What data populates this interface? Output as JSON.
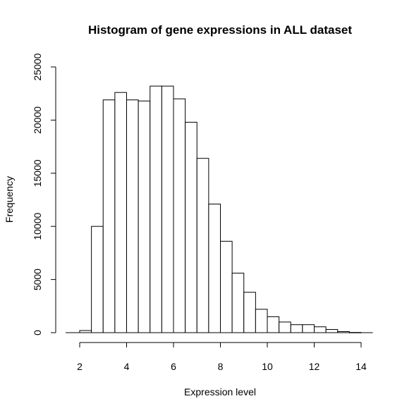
{
  "chart_data": {
    "type": "bar",
    "title": "Histogram of gene expressions in ALL dataset",
    "xlabel": "Expression level",
    "ylabel": "Frequency",
    "bin_width": 0.5,
    "bins": [
      {
        "start": 2.0,
        "end": 2.5,
        "count": 200
      },
      {
        "start": 2.5,
        "end": 3.0,
        "count": 10000
      },
      {
        "start": 3.0,
        "end": 3.5,
        "count": 21900
      },
      {
        "start": 3.5,
        "end": 4.0,
        "count": 22600
      },
      {
        "start": 4.0,
        "end": 4.5,
        "count": 21900
      },
      {
        "start": 4.5,
        "end": 5.0,
        "count": 21800
      },
      {
        "start": 5.0,
        "end": 5.5,
        "count": 23200
      },
      {
        "start": 5.5,
        "end": 6.0,
        "count": 23200
      },
      {
        "start": 6.0,
        "end": 6.5,
        "count": 22000
      },
      {
        "start": 6.5,
        "end": 7.0,
        "count": 19800
      },
      {
        "start": 7.0,
        "end": 7.5,
        "count": 16400
      },
      {
        "start": 7.5,
        "end": 8.0,
        "count": 12100
      },
      {
        "start": 8.0,
        "end": 8.5,
        "count": 8600
      },
      {
        "start": 8.5,
        "end": 9.0,
        "count": 5600
      },
      {
        "start": 9.0,
        "end": 9.5,
        "count": 3800
      },
      {
        "start": 9.5,
        "end": 10.0,
        "count": 2200
      },
      {
        "start": 10.0,
        "end": 10.5,
        "count": 1500
      },
      {
        "start": 10.5,
        "end": 11.0,
        "count": 1000
      },
      {
        "start": 11.0,
        "end": 11.5,
        "count": 750
      },
      {
        "start": 11.5,
        "end": 12.0,
        "count": 750
      },
      {
        "start": 12.0,
        "end": 12.5,
        "count": 550
      },
      {
        "start": 12.5,
        "end": 13.0,
        "count": 300
      },
      {
        "start": 13.0,
        "end": 13.5,
        "count": 100
      },
      {
        "start": 13.5,
        "end": 14.0,
        "count": 20
      }
    ],
    "xlim": [
      1,
      14.5
    ],
    "ylim": [
      0,
      25000
    ],
    "x_ticks": [
      2,
      4,
      6,
      8,
      10,
      12,
      14
    ],
    "x_tick_labels": [
      "2",
      "4",
      "6",
      "8",
      "10",
      "12",
      "14"
    ],
    "y_ticks": [
      0,
      5000,
      10000,
      15000,
      20000,
      25000
    ],
    "y_tick_labels": [
      "0",
      "5000",
      "10000",
      "15000",
      "20000",
      "25000"
    ],
    "grid": false,
    "legend": "none",
    "bar_fill": "#ffffff",
    "bar_stroke": "#000000"
  }
}
